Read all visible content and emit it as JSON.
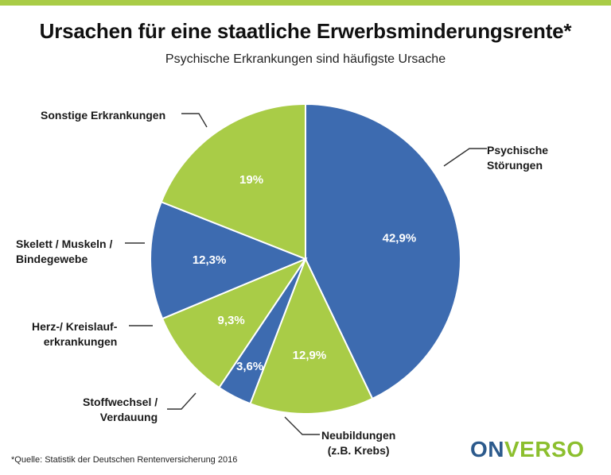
{
  "header": {
    "title": "Ursachen für eine staatliche Erwerbsminderungsrente*",
    "subtitle": "Psychische Erkrankungen sind häufigste Ursache"
  },
  "footer": {
    "source": "*Quelle: Statistik der Deutschen Rentenversicherung 2016",
    "logo_part1": "ON",
    "logo_part2": "VERSO"
  },
  "colors": {
    "blue": "#3d6bb0",
    "green": "#a9cc47",
    "accent_bar": "#a9cc47",
    "logo_dark": "#2c5a8c",
    "logo_green": "#8cbf2e"
  },
  "chart_data": {
    "type": "pie",
    "title": "Ursachen für eine staatliche Erwerbsminderungsrente*",
    "subtitle": "Psychische Erkrankungen sind häufigste Ursache",
    "slices": [
      {
        "label_line1": "Psychische",
        "label_line2": "Störungen",
        "value": 42.9,
        "value_label": "42,9%",
        "color": "blue"
      },
      {
        "label_line1": "Neubildungen",
        "label_line2": "(z.B. Krebs)",
        "value": 12.9,
        "value_label": "12,9%",
        "color": "green"
      },
      {
        "label_line1": "Stoffwechsel /",
        "label_line2": "Verdauung",
        "value": 3.6,
        "value_label": "3,6%",
        "color": "blue"
      },
      {
        "label_line1": "Herz-/ Kreislauf-",
        "label_line2": "erkrankungen",
        "value": 9.3,
        "value_label": "9,3%",
        "color": "green"
      },
      {
        "label_line1": "Skelett / Muskeln /",
        "label_line2": "Bindegewebe",
        "value": 12.3,
        "value_label": "12,3%",
        "color": "blue"
      },
      {
        "label_line1": "Sonstige Erkrankungen",
        "label_line2": "",
        "value": 19,
        "value_label": "19%",
        "color": "green"
      }
    ]
  }
}
